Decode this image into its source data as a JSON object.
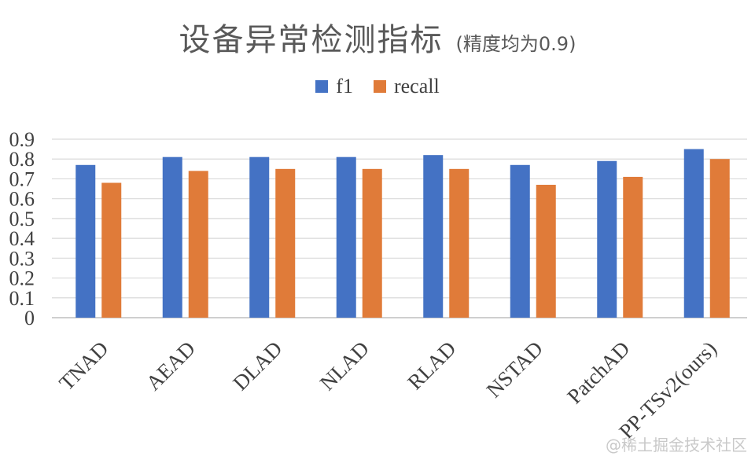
{
  "chart_data": {
    "type": "bar",
    "title": "设备异常检测指标",
    "subtitle": "(精度均为0.9)",
    "categories": [
      "TNAD",
      "AEAD",
      "DLAD",
      "NLAD",
      "RLAD",
      "NSTAD",
      "PatchAD",
      "PP-TSv2(ours)"
    ],
    "series": [
      {
        "name": "f1",
        "color": "#4472C4",
        "values": [
          0.77,
          0.81,
          0.81,
          0.81,
          0.82,
          0.77,
          0.79,
          0.85
        ]
      },
      {
        "name": "recall",
        "color": "#E07B39",
        "values": [
          0.68,
          0.74,
          0.75,
          0.75,
          0.75,
          0.67,
          0.71,
          0.8
        ]
      }
    ],
    "yticks": [
      "0",
      "0.1",
      "0.2",
      "0.3",
      "0.4",
      "0.5",
      "0.6",
      "0.7",
      "0.8",
      "0.9"
    ],
    "ylim": [
      0,
      0.9
    ],
    "grid": true,
    "legend_position": "top-center"
  },
  "watermark": "@稀土掘金技术社区"
}
